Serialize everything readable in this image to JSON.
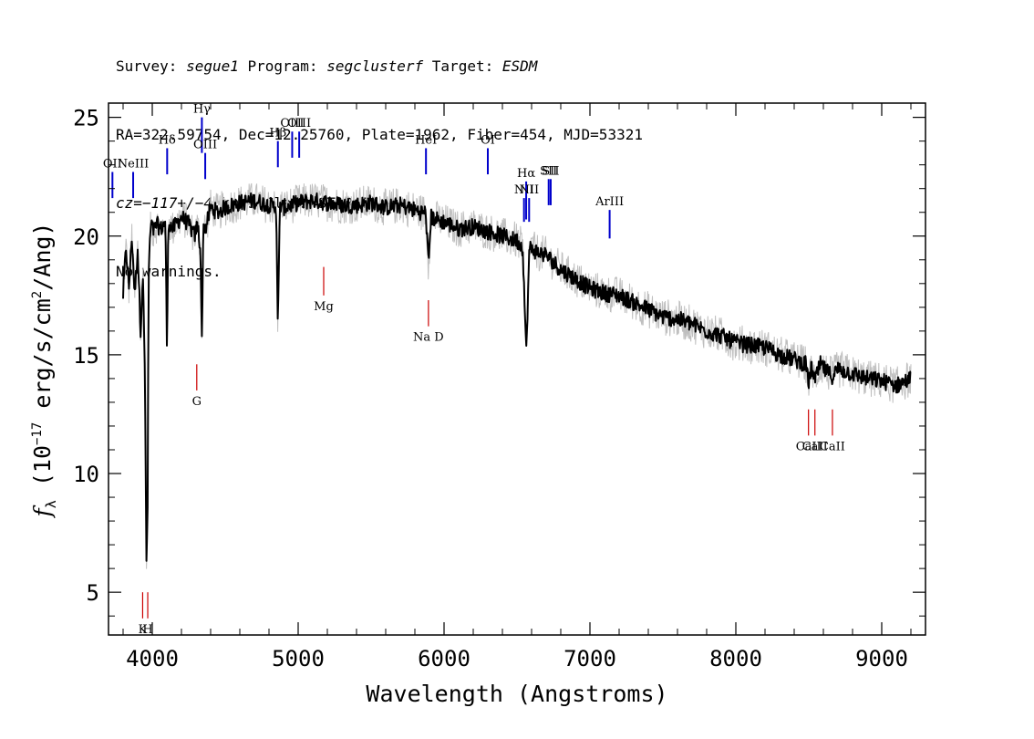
{
  "header": {
    "line1": {
      "p1": "Survey: ",
      "survey": "segue1",
      "p2": " Program: ",
      "program": "segclusterf",
      "p3": " Target: ",
      "target": "ESDM"
    },
    "line2": "RA=322.59754, Dec=12.25760, Plate=1962, Fiber=454, MJD=53321",
    "line3": {
      "cz": "cz=−117+/−4",
      "rest": " km/s Class=STAR F5"
    },
    "line4": "No warnings."
  },
  "chart_data": {
    "type": "line",
    "xlabel": "Wavelength (Angstroms)",
    "ylabel_prefix": "f",
    "ylabel_sub": "λ",
    "ylabel_unit_a": " (10",
    "ylabel_exp": "−17",
    "ylabel_unit_b": " erg/s/cm",
    "ylabel_exp2": "2",
    "ylabel_unit_c": "/Ang)",
    "xlim": [
      3700,
      9300
    ],
    "ylim": [
      3.2,
      25.6
    ],
    "x_ticks": [
      4000,
      5000,
      6000,
      7000,
      8000,
      9000
    ],
    "y_ticks": [
      5,
      10,
      15,
      20,
      25
    ],
    "grid": false,
    "series": [
      {
        "role": "flux",
        "color": "#000000",
        "x": [
          3800,
          3820,
          3840,
          3860,
          3880,
          3900,
          3920,
          3935,
          3950,
          3960,
          3968,
          3975,
          3990,
          4010,
          4030,
          4060,
          4090,
          4101,
          4110,
          4140,
          4200,
          4250,
          4290,
          4310,
          4330,
          4340,
          4350,
          4370,
          4400,
          4450,
          4500,
          4600,
          4700,
          4800,
          4850,
          4861,
          4875,
          4900,
          5000,
          5100,
          5200,
          5300,
          5400,
          5500,
          5600,
          5700,
          5800,
          5850,
          5875,
          5893,
          5910,
          5950,
          6000,
          6100,
          6200,
          6300,
          6400,
          6500,
          6540,
          6563,
          6585,
          6650,
          6700,
          6800,
          6900,
          7000,
          7100,
          7200,
          7300,
          7400,
          7500,
          7600,
          7700,
          7800,
          7900,
          8000,
          8100,
          8200,
          8300,
          8400,
          8480,
          8498,
          8520,
          8542,
          8580,
          8620,
          8662,
          8700,
          8800,
          8900,
          9000,
          9100,
          9200
        ],
        "y": [
          17.5,
          19.5,
          17.8,
          20.0,
          17.5,
          19.5,
          16.0,
          18.5,
          14.0,
          6.0,
          8.5,
          18.5,
          20.5,
          20.2,
          20.5,
          20.3,
          20.6,
          15.0,
          20.6,
          20.3,
          20.8,
          20.5,
          20.0,
          20.5,
          19.5,
          15.5,
          20.4,
          20.4,
          21.2,
          21.0,
          21.2,
          21.4,
          21.5,
          21.3,
          21.2,
          16.0,
          21.3,
          21.2,
          21.4,
          21.5,
          21.4,
          21.3,
          21.3,
          21.4,
          21.2,
          21.3,
          21.1,
          21.0,
          21.0,
          18.8,
          20.8,
          20.7,
          20.6,
          20.3,
          20.4,
          20.2,
          20.0,
          19.8,
          19.5,
          15.0,
          19.5,
          19.3,
          19.2,
          18.6,
          18.2,
          17.8,
          17.6,
          17.5,
          17.2,
          16.9,
          16.6,
          16.5,
          16.3,
          16.0,
          15.8,
          15.5,
          15.4,
          15.3,
          15.0,
          14.8,
          14.6,
          13.8,
          14.5,
          13.9,
          14.6,
          14.3,
          14.1,
          14.4,
          14.2,
          14.0,
          13.9,
          13.7,
          14.0
        ]
      }
    ],
    "emission_lines": [
      {
        "label": "OII",
        "wave": 3727,
        "top": 22.7,
        "bottom": 21.6
      },
      {
        "label": "NeIII",
        "wave": 3869,
        "top": 22.7,
        "bottom": 21.6
      },
      {
        "label": "Hδ",
        "wave": 4102,
        "top": 23.7,
        "bottom": 22.6
      },
      {
        "label": "Hγ",
        "wave": 4340,
        "top": 25.0,
        "bottom": 23.5
      },
      {
        "label": "OIII",
        "wave": 4363,
        "top": 23.5,
        "bottom": 22.4
      },
      {
        "label": "Hβ",
        "wave": 4861,
        "top": 24.0,
        "bottom": 22.9
      },
      {
        "label": "OIII",
        "wave": 4959,
        "top": 24.4,
        "bottom": 23.3
      },
      {
        "label": "OIII",
        "wave": 5007,
        "top": 24.4,
        "bottom": 23.3
      },
      {
        "label": "HeI",
        "wave": 5876,
        "top": 23.7,
        "bottom": 22.6
      },
      {
        "label": "OI",
        "wave": 6300,
        "top": 23.7,
        "bottom": 22.6
      },
      {
        "label": "NII",
        "wave": 6548,
        "top": 21.6,
        "bottom": 20.6
      },
      {
        "label": "Hα",
        "wave": 6563,
        "top": 22.3,
        "bottom": 20.7
      },
      {
        "label": "NII",
        "wave": 6583,
        "top": 21.6,
        "bottom": 20.6
      },
      {
        "label": "SII",
        "wave": 6717,
        "top": 22.4,
        "bottom": 21.3
      },
      {
        "label": "SII",
        "wave": 6731,
        "top": 22.4,
        "bottom": 21.3
      },
      {
        "label": "ArIII",
        "wave": 7135,
        "top": 21.1,
        "bottom": 19.9
      }
    ],
    "absorption_lines": [
      {
        "label": "K",
        "wave": 3934,
        "top": 3.9,
        "bottom": 5.0
      },
      {
        "label": "H",
        "wave": 3969,
        "top": 3.9,
        "bottom": 5.0
      },
      {
        "label": "G",
        "wave": 4305,
        "top": 13.5,
        "bottom": 14.6
      },
      {
        "label": "Mg",
        "wave": 5175,
        "top": 17.5,
        "bottom": 18.7
      },
      {
        "label": "Na D",
        "wave": 5893,
        "top": 16.2,
        "bottom": 17.3
      },
      {
        "label": "CaII",
        "wave": 8498,
        "top": 11.6,
        "bottom": 12.7
      },
      {
        "label": "CaII",
        "wave": 8542,
        "top": 11.6,
        "bottom": 12.7
      },
      {
        "label": "CaII",
        "wave": 8662,
        "top": 11.6,
        "bottom": 12.7
      }
    ],
    "colors": {
      "flux": "#000000",
      "noise": "#bfbfbf",
      "emission": "#0000cc",
      "absorption": "#cc0000"
    }
  }
}
